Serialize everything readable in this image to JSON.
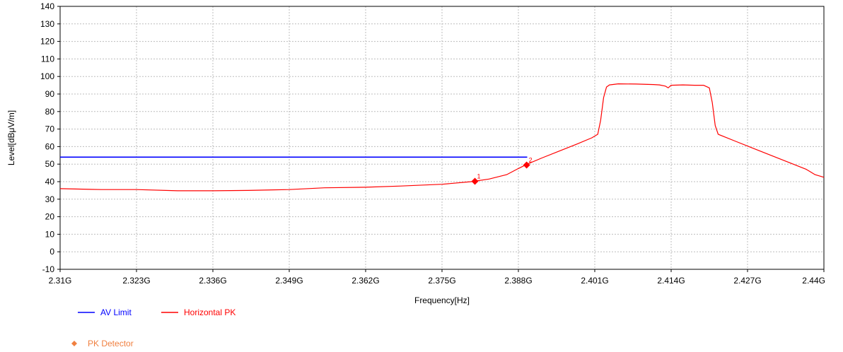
{
  "chart_data": {
    "type": "line",
    "xlabel": "Frequency[Hz]",
    "ylabel": "Level[dBμV/m]",
    "xlim": [
      2.31,
      2.44
    ],
    "ylim": [
      -10,
      140
    ],
    "x_ticks": [
      {
        "v": 2.31,
        "label": "2.31G"
      },
      {
        "v": 2.323,
        "label": "2.323G"
      },
      {
        "v": 2.336,
        "label": "2.336G"
      },
      {
        "v": 2.349,
        "label": "2.349G"
      },
      {
        "v": 2.362,
        "label": "2.362G"
      },
      {
        "v": 2.375,
        "label": "2.375G"
      },
      {
        "v": 2.388,
        "label": "2.388G"
      },
      {
        "v": 2.401,
        "label": "2.401G"
      },
      {
        "v": 2.414,
        "label": "2.414G"
      },
      {
        "v": 2.427,
        "label": "2.427G"
      },
      {
        "v": 2.44,
        "label": "2.44G"
      }
    ],
    "y_ticks": [
      -10,
      0,
      10,
      20,
      30,
      40,
      50,
      60,
      70,
      80,
      90,
      100,
      110,
      120,
      130,
      140
    ],
    "grid": true,
    "legend_position": "bottom-left",
    "series": [
      {
        "name": "AV Limit",
        "color": "#0000ff",
        "x": [
          2.31,
          2.3895
        ],
        "y": [
          54,
          54
        ]
      },
      {
        "name": "Horizontal PK",
        "color": "#ff0000",
        "x": [
          2.31,
          2.317,
          2.323,
          2.33,
          2.336,
          2.342,
          2.349,
          2.355,
          2.362,
          2.368,
          2.375,
          2.38,
          2.383,
          2.386,
          2.388,
          2.3895,
          2.392,
          2.395,
          2.398,
          2.4005,
          2.4015,
          2.402,
          2.4025,
          2.403,
          2.4035,
          2.405,
          2.408,
          2.411,
          2.412,
          2.413,
          2.4135,
          2.414,
          2.416,
          2.418,
          2.4195,
          2.4205,
          2.421,
          2.4215,
          2.422,
          2.425,
          2.428,
          2.431,
          2.434,
          2.437,
          2.4385,
          2.44
        ],
        "y": [
          36,
          35.5,
          35.5,
          34.8,
          34.8,
          35,
          35.5,
          36.5,
          36.8,
          37.5,
          38.5,
          40,
          41.5,
          44,
          47.5,
          50,
          53.5,
          57.5,
          61.5,
          65,
          67,
          75,
          88,
          94,
          95.2,
          95.8,
          95.7,
          95.4,
          95.2,
          94.5,
          93.5,
          95,
          95.2,
          95,
          95,
          93.5,
          85,
          72,
          67,
          63,
          59,
          55,
          51,
          47,
          44,
          42.5
        ]
      }
    ],
    "markers": [
      {
        "label": "1",
        "x": 2.3806,
        "y": 40.2
      },
      {
        "label": "2",
        "x": 2.3894,
        "y": 49.5
      }
    ],
    "marker_legend": {
      "name": "PK Detector",
      "color": "#f08040",
      "marker_color": "#ff0000"
    }
  }
}
